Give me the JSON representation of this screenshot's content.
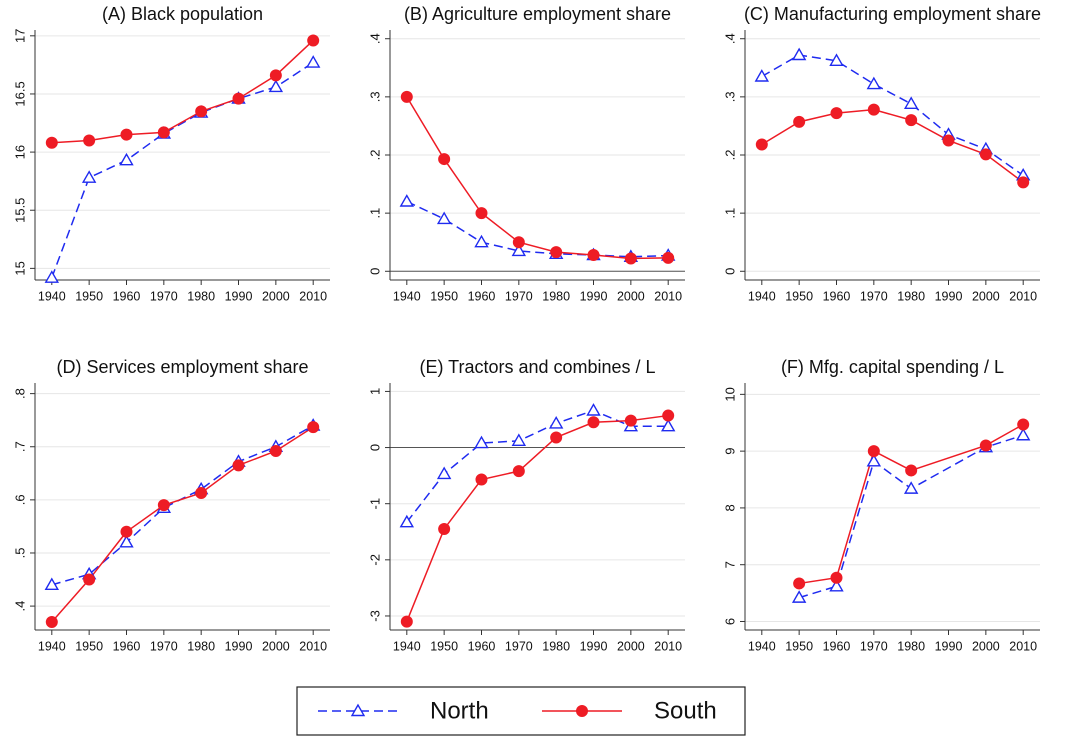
{
  "chart_data": [
    {
      "type": "line",
      "title": "(A) Black population",
      "x": [
        1940,
        1950,
        1960,
        1970,
        1980,
        1990,
        2000,
        2010
      ],
      "xlim": [
        1935.5,
        2014.5
      ],
      "xticks": [
        1940,
        1950,
        1960,
        1970,
        1980,
        1990,
        2000,
        2010
      ],
      "ylim": [
        14.9,
        17.05
      ],
      "yticks": [
        15,
        15.5,
        16,
        16.5,
        17
      ],
      "grid": true,
      "legend": "bottom",
      "series": [
        {
          "name": "North",
          "color": "#1f2bf0",
          "marker": "triangle",
          "dash": true,
          "values": [
            14.92,
            15.78,
            15.93,
            16.16,
            16.34,
            16.46,
            16.56,
            16.77
          ]
        },
        {
          "name": "South",
          "color": "#ee1c25",
          "marker": "circle",
          "dash": false,
          "values": [
            16.08,
            16.1,
            16.15,
            16.17,
            16.35,
            16.46,
            16.66,
            16.96
          ]
        }
      ]
    },
    {
      "type": "line",
      "title": "(B) Agriculture employment share",
      "x": [
        1940,
        1950,
        1960,
        1970,
        1980,
        1990,
        2000,
        2010
      ],
      "xlim": [
        1935.5,
        2014.5
      ],
      "xticks": [
        1940,
        1950,
        1960,
        1970,
        1980,
        1990,
        2000,
        2010
      ],
      "ylim": [
        -0.015,
        0.415
      ],
      "yticks": [
        0,
        {
          "value": 0.1,
          "label": ".1"
        },
        {
          "value": 0.2,
          "label": ".2"
        },
        {
          "value": 0.3,
          "label": ".3"
        },
        {
          "value": 0.4,
          "label": ".4"
        }
      ],
      "grid": true,
      "hline": 0,
      "series": [
        {
          "name": "North",
          "color": "#1f2bf0",
          "marker": "triangle",
          "dash": true,
          "values": [
            0.12,
            0.09,
            0.05,
            0.035,
            0.03,
            0.028,
            0.025,
            0.027
          ]
        },
        {
          "name": "South",
          "color": "#ee1c25",
          "marker": "circle",
          "dash": false,
          "values": [
            0.3,
            0.193,
            0.1,
            0.05,
            0.033,
            0.028,
            0.022,
            0.023
          ]
        }
      ]
    },
    {
      "type": "line",
      "title": "(C) Manufacturing employment share",
      "x": [
        1940,
        1950,
        1960,
        1970,
        1980,
        1990,
        2000,
        2010
      ],
      "xlim": [
        1935.5,
        2014.5
      ],
      "xticks": [
        1940,
        1950,
        1960,
        1970,
        1980,
        1990,
        2000,
        2010
      ],
      "ylim": [
        -0.015,
        0.415
      ],
      "yticks": [
        0,
        {
          "value": 0.1,
          "label": ".1"
        },
        {
          "value": 0.2,
          "label": ".2"
        },
        {
          "value": 0.3,
          "label": ".3"
        },
        {
          "value": 0.4,
          "label": ".4"
        }
      ],
      "grid": true,
      "series": [
        {
          "name": "North",
          "color": "#1f2bf0",
          "marker": "triangle",
          "dash": true,
          "values": [
            0.335,
            0.372,
            0.362,
            0.322,
            0.288,
            0.235,
            0.21,
            0.165
          ]
        },
        {
          "name": "South",
          "color": "#ee1c25",
          "marker": "circle",
          "dash": false,
          "values": [
            0.218,
            0.257,
            0.272,
            0.278,
            0.26,
            0.225,
            0.201,
            0.153
          ]
        }
      ]
    },
    {
      "type": "line",
      "title": "(D) Services employment share",
      "x": [
        1940,
        1950,
        1960,
        1970,
        1980,
        1990,
        2000,
        2010
      ],
      "xlim": [
        1935.5,
        2014.5
      ],
      "xticks": [
        1940,
        1950,
        1960,
        1970,
        1980,
        1990,
        2000,
        2010
      ],
      "ylim": [
        0.355,
        0.82
      ],
      "yticks": [
        {
          "value": 0.4,
          "label": ".4"
        },
        {
          "value": 0.5,
          "label": ".5"
        },
        {
          "value": 0.6,
          "label": ".6"
        },
        {
          "value": 0.7,
          "label": ".7"
        },
        {
          "value": 0.8,
          "label": ".8"
        }
      ],
      "grid": true,
      "series": [
        {
          "name": "North",
          "color": "#1f2bf0",
          "marker": "triangle",
          "dash": true,
          "values": [
            0.44,
            0.46,
            0.52,
            0.585,
            0.62,
            0.672,
            0.7,
            0.74
          ]
        },
        {
          "name": "South",
          "color": "#ee1c25",
          "marker": "circle",
          "dash": false,
          "values": [
            0.37,
            0.45,
            0.54,
            0.59,
            0.613,
            0.665,
            0.692,
            0.737
          ]
        }
      ]
    },
    {
      "type": "line",
      "title": "(E) Tractors and combines / L",
      "x": [
        1940,
        1950,
        1960,
        1970,
        1980,
        1990,
        2000,
        2010
      ],
      "xlim": [
        1935.5,
        2014.5
      ],
      "xticks": [
        1940,
        1950,
        1960,
        1970,
        1980,
        1990,
        2000,
        2010
      ],
      "ylim": [
        -3.25,
        1.15
      ],
      "yticks": [
        -3,
        -2,
        -1,
        0,
        1
      ],
      "grid": true,
      "hline": 0,
      "series": [
        {
          "name": "North",
          "color": "#1f2bf0",
          "marker": "triangle",
          "dash": true,
          "values": [
            -1.33,
            -0.47,
            0.08,
            0.12,
            0.43,
            0.66,
            0.38,
            0.38
          ]
        },
        {
          "name": "South",
          "color": "#ee1c25",
          "marker": "circle",
          "dash": false,
          "values": [
            -3.1,
            -1.45,
            -0.57,
            -0.42,
            0.18,
            0.45,
            0.48,
            0.57
          ]
        }
      ]
    },
    {
      "type": "line",
      "title": "(F) Mfg. capital spending / L",
      "x": [
        1950,
        1960,
        1970,
        1980,
        2000,
        2010
      ],
      "xlim": [
        1935.5,
        2014.5
      ],
      "xticks": [
        1940,
        1950,
        1960,
        1970,
        1980,
        1990,
        2000,
        2010
      ],
      "ylim": [
        5.85,
        10.2
      ],
      "yticks": [
        6,
        7,
        8,
        9,
        10
      ],
      "grid": true,
      "series": [
        {
          "name": "North",
          "color": "#1f2bf0",
          "marker": "triangle",
          "dash": true,
          "values": [
            6.42,
            6.62,
            8.82,
            8.34,
            9.07,
            9.28
          ]
        },
        {
          "name": "South",
          "color": "#ee1c25",
          "marker": "circle",
          "dash": false,
          "values": [
            6.67,
            6.77,
            9.0,
            8.66,
            9.1,
            9.47
          ]
        }
      ]
    }
  ]
}
